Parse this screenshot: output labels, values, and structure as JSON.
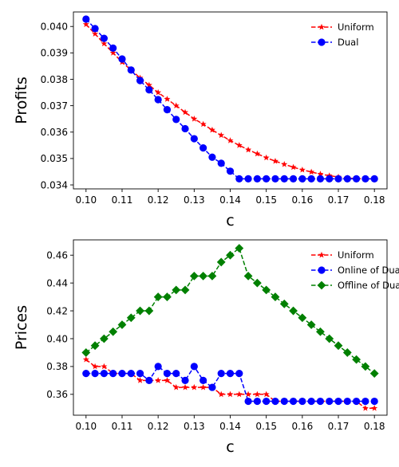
{
  "chart_data": [
    {
      "type": "line",
      "xlabel": "c",
      "ylabel": "Profits",
      "xlim": [
        0.0965,
        0.1835
      ],
      "ylim": [
        0.03385,
        0.04055
      ],
      "xticks": [
        "0.10",
        "0.11",
        "0.12",
        "0.13",
        "0.14",
        "0.15",
        "0.16",
        "0.17",
        "0.18"
      ],
      "yticks": [
        "0.034",
        "0.035",
        "0.036",
        "0.037",
        "0.038",
        "0.039",
        "0.040"
      ],
      "legend_position": "top-right",
      "x": [
        0.1,
        0.1025,
        0.105,
        0.1075,
        0.11,
        0.1125,
        0.115,
        0.1175,
        0.12,
        0.1225,
        0.125,
        0.1275,
        0.13,
        0.1325,
        0.135,
        0.1375,
        0.14,
        0.1425,
        0.145,
        0.1475,
        0.15,
        0.1525,
        0.155,
        0.1575,
        0.16,
        0.1625,
        0.165,
        0.1675,
        0.17,
        0.1725,
        0.175,
        0.1775,
        0.18
      ],
      "series": [
        {
          "name": "Uniform",
          "color": "#ff0000",
          "marker": "star",
          "values": [
            0.04008,
            0.03972,
            0.03935,
            0.039,
            0.03865,
            0.03835,
            0.03805,
            0.03778,
            0.0375,
            0.03725,
            0.037,
            0.03675,
            0.0365,
            0.0363,
            0.03608,
            0.03588,
            0.03568,
            0.0355,
            0.03533,
            0.03518,
            0.03503,
            0.0349,
            0.03478,
            0.03467,
            0.03457,
            0.03449,
            0.03441,
            0.03435,
            0.0343,
            0.03426,
            0.03424,
            0.03423,
            0.03423
          ]
        },
        {
          "name": "Dual",
          "color": "#0000ff",
          "marker": "circle",
          "values": [
            0.04028,
            0.03992,
            0.03955,
            0.03918,
            0.03877,
            0.03835,
            0.03795,
            0.0376,
            0.03723,
            0.03685,
            0.03648,
            0.03613,
            0.03575,
            0.0354,
            0.03505,
            0.03482,
            0.03452,
            0.03423,
            0.03423,
            0.03423,
            0.03423,
            0.03423,
            0.03423,
            0.03423,
            0.03423,
            0.03423,
            0.03423,
            0.03423,
            0.03423,
            0.03423,
            0.03423,
            0.03423,
            0.03423
          ]
        }
      ]
    },
    {
      "type": "line",
      "xlabel": "c",
      "ylabel": "Prices",
      "xlim": [
        0.0965,
        0.1835
      ],
      "ylim": [
        0.345,
        0.471
      ],
      "xticks": [
        "0.10",
        "0.11",
        "0.12",
        "0.13",
        "0.14",
        "0.15",
        "0.16",
        "0.17",
        "0.18"
      ],
      "yticks": [
        "0.36",
        "0.38",
        "0.40",
        "0.42",
        "0.44",
        "0.46"
      ],
      "legend_position": "top-right",
      "x": [
        0.1,
        0.1025,
        0.105,
        0.1075,
        0.11,
        0.1125,
        0.115,
        0.1175,
        0.12,
        0.1225,
        0.125,
        0.1275,
        0.13,
        0.1325,
        0.135,
        0.1375,
        0.14,
        0.1425,
        0.145,
        0.1475,
        0.15,
        0.1525,
        0.155,
        0.1575,
        0.16,
        0.1625,
        0.165,
        0.1675,
        0.17,
        0.1725,
        0.175,
        0.1775,
        0.18
      ],
      "series": [
        {
          "name": "Uniform",
          "color": "#ff0000",
          "marker": "star",
          "values": [
            0.385,
            0.38,
            0.38,
            0.375,
            0.375,
            0.375,
            0.37,
            0.37,
            0.37,
            0.37,
            0.365,
            0.365,
            0.365,
            0.365,
            0.365,
            0.36,
            0.36,
            0.36,
            0.36,
            0.36,
            0.36,
            0.355,
            0.355,
            0.355,
            0.355,
            0.355,
            0.355,
            0.355,
            0.355,
            0.355,
            0.355,
            0.35,
            0.35
          ]
        },
        {
          "name": "Online of Dual",
          "color": "#0000ff",
          "marker": "circle",
          "values": [
            0.375,
            0.375,
            0.375,
            0.375,
            0.375,
            0.375,
            0.375,
            0.37,
            0.38,
            0.375,
            0.375,
            0.37,
            0.38,
            0.37,
            0.365,
            0.375,
            0.375,
            0.375,
            0.355,
            0.355,
            0.355,
            0.355,
            0.355,
            0.355,
            0.355,
            0.355,
            0.355,
            0.355,
            0.355,
            0.355,
            0.355,
            0.355,
            0.355
          ]
        },
        {
          "name": "Offline of Dual",
          "color": "#008000",
          "marker": "diamond",
          "values": [
            0.39,
            0.395,
            0.4,
            0.405,
            0.41,
            0.415,
            0.42,
            0.42,
            0.43,
            0.43,
            0.435,
            0.435,
            0.445,
            0.445,
            0.445,
            0.455,
            0.46,
            0.465,
            0.445,
            0.44,
            0.435,
            0.43,
            0.425,
            0.42,
            0.415,
            0.41,
            0.405,
            0.4,
            0.395,
            0.39,
            0.385,
            0.38,
            0.375
          ]
        }
      ]
    }
  ]
}
